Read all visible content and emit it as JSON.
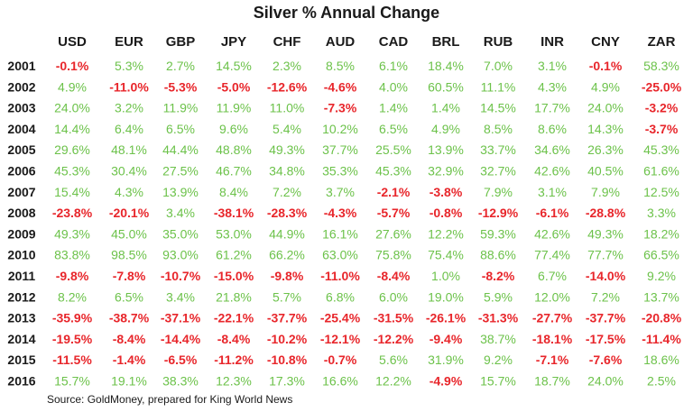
{
  "chart_data": {
    "type": "table",
    "title": "Silver % Annual Change",
    "columns": [
      "USD",
      "EUR",
      "GBP",
      "JPY",
      "CHF",
      "AUD",
      "CAD",
      "BRL",
      "RUB",
      "INR",
      "CNY",
      "ZAR"
    ],
    "rows": [
      {
        "year": "2001",
        "values": [
          "-0.1%",
          "5.3%",
          "2.7%",
          "14.5%",
          "2.3%",
          "8.5%",
          "6.1%",
          "18.4%",
          "7.0%",
          "3.1%",
          "-0.1%",
          "58.3%"
        ]
      },
      {
        "year": "2002",
        "values": [
          "4.9%",
          "-11.0%",
          "-5.3%",
          "-5.0%",
          "-12.6%",
          "-4.6%",
          "4.0%",
          "60.5%",
          "11.1%",
          "4.3%",
          "4.9%",
          "-25.0%"
        ]
      },
      {
        "year": "2003",
        "values": [
          "24.0%",
          "3.2%",
          "11.9%",
          "11.9%",
          "11.0%",
          "-7.3%",
          "1.4%",
          "1.4%",
          "14.5%",
          "17.7%",
          "24.0%",
          "-3.2%"
        ]
      },
      {
        "year": "2004",
        "values": [
          "14.4%",
          "6.4%",
          "6.5%",
          "9.6%",
          "5.4%",
          "10.2%",
          "6.5%",
          "4.9%",
          "8.5%",
          "8.6%",
          "14.3%",
          "-3.7%"
        ]
      },
      {
        "year": "2005",
        "values": [
          "29.6%",
          "48.1%",
          "44.4%",
          "48.8%",
          "49.3%",
          "37.7%",
          "25.5%",
          "13.9%",
          "33.7%",
          "34.6%",
          "26.3%",
          "45.3%"
        ]
      },
      {
        "year": "2006",
        "values": [
          "45.3%",
          "30.4%",
          "27.5%",
          "46.7%",
          "34.8%",
          "35.3%",
          "45.3%",
          "32.9%",
          "32.7%",
          "42.6%",
          "40.5%",
          "61.6%"
        ]
      },
      {
        "year": "2007",
        "values": [
          "15.4%",
          "4.3%",
          "13.9%",
          "8.4%",
          "7.2%",
          "3.7%",
          "-2.1%",
          "-3.8%",
          "7.9%",
          "3.1%",
          "7.9%",
          "12.5%"
        ]
      },
      {
        "year": "2008",
        "values": [
          "-23.8%",
          "-20.1%",
          "3.4%",
          "-38.1%",
          "-28.3%",
          "-4.3%",
          "-5.7%",
          "-0.8%",
          "-12.9%",
          "-6.1%",
          "-28.8%",
          "3.3%"
        ]
      },
      {
        "year": "2009",
        "values": [
          "49.3%",
          "45.0%",
          "35.0%",
          "53.0%",
          "44.9%",
          "16.1%",
          "27.6%",
          "12.2%",
          "59.3%",
          "42.6%",
          "49.3%",
          "18.2%"
        ]
      },
      {
        "year": "2010",
        "values": [
          "83.8%",
          "98.5%",
          "93.0%",
          "61.2%",
          "66.2%",
          "63.0%",
          "75.8%",
          "75.4%",
          "88.6%",
          "77.4%",
          "77.7%",
          "66.5%"
        ]
      },
      {
        "year": "2011",
        "values": [
          "-9.8%",
          "-7.8%",
          "-10.7%",
          "-15.0%",
          "-9.8%",
          "-11.0%",
          "-8.4%",
          "1.0%",
          "-8.2%",
          "6.7%",
          "-14.0%",
          "9.2%"
        ]
      },
      {
        "year": "2012",
        "values": [
          "8.2%",
          "6.5%",
          "3.4%",
          "21.8%",
          "5.7%",
          "6.8%",
          "6.0%",
          "19.0%",
          "5.9%",
          "12.0%",
          "7.2%",
          "13.7%"
        ]
      },
      {
        "year": "2013",
        "values": [
          "-35.9%",
          "-38.7%",
          "-37.1%",
          "-22.1%",
          "-37.7%",
          "-25.4%",
          "-31.5%",
          "-26.1%",
          "-31.3%",
          "-27.7%",
          "-37.7%",
          "-20.8%"
        ]
      },
      {
        "year": "2014",
        "values": [
          "-19.5%",
          "-8.4%",
          "-14.4%",
          "-8.4%",
          "-10.2%",
          "-12.1%",
          "-12.2%",
          "-9.4%",
          "38.7%",
          "-18.1%",
          "-17.5%",
          "-11.4%"
        ]
      },
      {
        "year": "2015",
        "values": [
          "-11.5%",
          "-1.4%",
          "-6.5%",
          "-11.2%",
          "-10.8%",
          "-0.7%",
          "5.6%",
          "31.9%",
          "9.2%",
          "-7.1%",
          "-7.6%",
          "18.6%"
        ]
      },
      {
        "year": "2016",
        "values": [
          "15.7%",
          "19.1%",
          "38.3%",
          "12.3%",
          "17.3%",
          "16.6%",
          "12.2%",
          "-4.9%",
          "15.7%",
          "18.7%",
          "24.0%",
          "2.5%"
        ]
      }
    ],
    "colors": {
      "positive": "#6cc24a",
      "negative": "#e8262b",
      "header": "#1a1a1a"
    }
  },
  "source": "Source: GoldMoney, prepared for King World News"
}
